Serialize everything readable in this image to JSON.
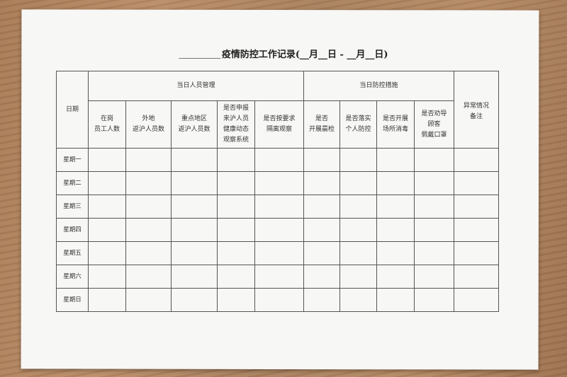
{
  "title": {
    "prefix_blank": "________",
    "text": "疫情防控工作记录(__月__日 - __月__日)"
  },
  "table": {
    "date_header": "日期",
    "group_personnel": "当日人员管理",
    "group_measures": "当日防控措施",
    "remarks_header": "异常情况\n备注",
    "columns": [
      "在岗\n员工人数",
      "外地\n返沪人员数",
      "重点地区\n返沪人员数",
      "是否申报\n来沪人员\n健康动态\n观察系统",
      "是否按要求\n隔离观察",
      "是否\n开展晨检",
      "是否落实\n个人防控",
      "是否开展\n场所消毒",
      "是否劝导\n顾客\n佩戴口罩"
    ],
    "rows": [
      "星期一",
      "星期二",
      "星期三",
      "星期四",
      "星期五",
      "星期六",
      "星期日"
    ]
  }
}
